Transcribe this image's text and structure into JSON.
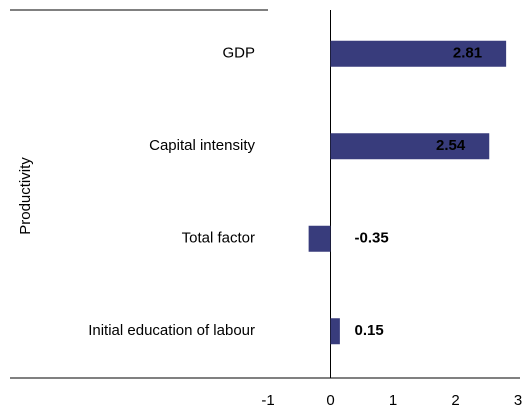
{
  "chart_data": {
    "type": "bar",
    "orientation": "horizontal",
    "y_label": "Productivity",
    "categories": [
      "GDP",
      "Capital intensity",
      "Total factor",
      "Initial education of labour"
    ],
    "values": [
      2.81,
      2.54,
      -0.35,
      0.15
    ],
    "color": "#383c7c",
    "xlim": [
      -1,
      3
    ],
    "xticks": [
      -1,
      0,
      1,
      2,
      3
    ],
    "grid": false
  }
}
